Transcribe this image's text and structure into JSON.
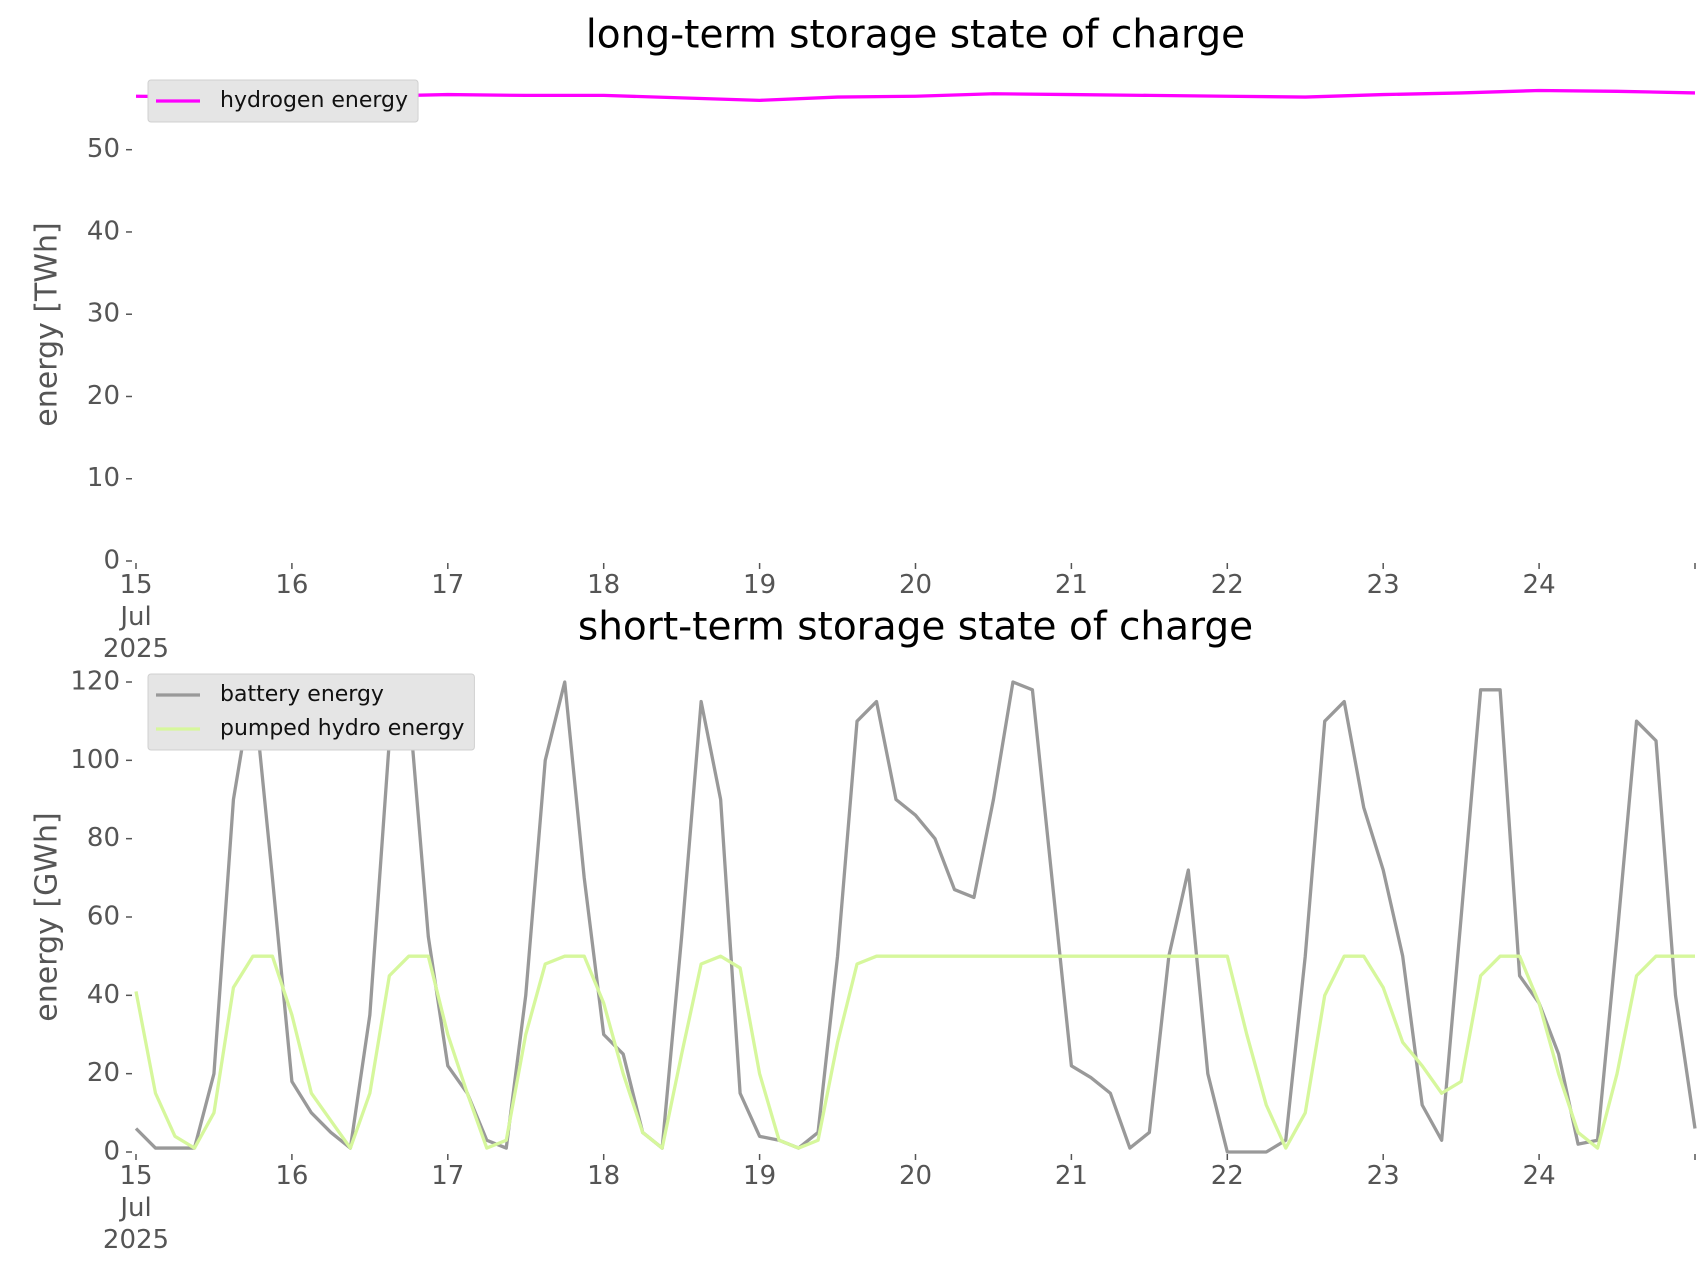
{
  "chart_data": [
    {
      "type": "line",
      "title": "long-term storage state of charge",
      "y_label": "energy [TWh]",
      "x": [
        15,
        15.5,
        16,
        16.5,
        17,
        17.5,
        18,
        18.5,
        19,
        19.5,
        20,
        20.5,
        21,
        21.5,
        22,
        22.5,
        23,
        23.5,
        24,
        24.5,
        25
      ],
      "series": [
        {
          "name": "hydrogen energy",
          "color": "#ff00ff",
          "values": [
            56.5,
            56.4,
            56.4,
            56.5,
            56.7,
            56.6,
            56.6,
            56.3,
            56.0,
            56.4,
            56.5,
            56.8,
            56.7,
            56.6,
            56.5,
            56.4,
            56.7,
            56.9,
            57.2,
            57.1,
            56.9
          ]
        }
      ],
      "xlim": [
        15,
        25
      ],
      "ylim": [
        0,
        57.5
      ],
      "xticks": [
        {
          "value": 15,
          "label": "15\nJul\n2025"
        },
        16,
        17,
        18,
        19,
        20,
        21,
        22,
        23,
        24,
        {
          "value": 25,
          "label": ""
        }
      ],
      "yticks": [
        0,
        10,
        20,
        30,
        40,
        50
      ],
      "legend": "upper left",
      "grid": false
    },
    {
      "type": "line",
      "title": "short-term storage state of charge",
      "y_label": "energy [GWh]",
      "x": [
        15,
        15.125,
        15.25,
        15.375,
        15.5,
        15.625,
        15.75,
        15.875,
        16,
        16.125,
        16.25,
        16.375,
        16.5,
        16.625,
        16.75,
        16.875,
        17,
        17.125,
        17.25,
        17.375,
        17.5,
        17.625,
        17.75,
        17.875,
        18,
        18.125,
        18.25,
        18.375,
        18.5,
        18.625,
        18.75,
        18.875,
        19,
        19.125,
        19.25,
        19.375,
        19.5,
        19.625,
        19.75,
        19.875,
        20,
        20.125,
        20.25,
        20.375,
        20.5,
        20.625,
        20.75,
        20.875,
        21,
        21.125,
        21.25,
        21.375,
        21.5,
        21.625,
        21.75,
        21.875,
        22,
        22.125,
        22.25,
        22.375,
        22.5,
        22.625,
        22.75,
        22.875,
        23,
        23.125,
        23.25,
        23.375,
        23.5,
        23.625,
        23.75,
        23.875,
        24,
        24.125,
        24.25,
        24.375,
        24.5,
        24.625,
        24.75,
        24.875,
        25
      ],
      "series": [
        {
          "name": "battery energy",
          "color": "#999999",
          "values": [
            6,
            1,
            1,
            1,
            20,
            90,
            120,
            70,
            18,
            10,
            5,
            1,
            35,
            105,
            115,
            55,
            22,
            15,
            3,
            1,
            40,
            100,
            120,
            70,
            30,
            25,
            5,
            1,
            55,
            115,
            90,
            15,
            4,
            3,
            1,
            5,
            50,
            110,
            115,
            90,
            86,
            80,
            67,
            65,
            90,
            120,
            118,
            70,
            22,
            19,
            15,
            1,
            5,
            50,
            72,
            20,
            0,
            0,
            0,
            3,
            50,
            110,
            115,
            88,
            72,
            50,
            12,
            3,
            60,
            118,
            118,
            45,
            38,
            25,
            2,
            3,
            55,
            110,
            105,
            40,
            6
          ]
        },
        {
          "name": "pumped hydro energy",
          "color": "#d6f79c",
          "values": [
            41,
            15,
            4,
            1,
            10,
            42,
            50,
            50,
            35,
            15,
            8,
            1,
            15,
            45,
            50,
            50,
            30,
            15,
            1,
            3,
            30,
            48,
            50,
            50,
            38,
            20,
            5,
            1,
            25,
            48,
            50,
            47,
            20,
            3,
            1,
            3,
            28,
            48,
            50,
            50,
            50,
            50,
            50,
            50,
            50,
            50,
            50,
            50,
            50,
            50,
            50,
            50,
            50,
            50,
            50,
            50,
            50,
            30,
            12,
            1,
            10,
            40,
            50,
            50,
            42,
            28,
            22,
            15,
            18,
            45,
            50,
            50,
            38,
            20,
            5,
            1,
            20,
            45,
            50,
            50,
            50
          ]
        }
      ],
      "xlim": [
        15,
        25
      ],
      "ylim": [
        0,
        120
      ],
      "xticks": [
        {
          "value": 15,
          "label": "15\nJul\n2025"
        },
        16,
        17,
        18,
        19,
        20,
        21,
        22,
        23,
        24,
        {
          "value": 25,
          "label": ""
        }
      ],
      "yticks": [
        0,
        20,
        40,
        60,
        80,
        100,
        120
      ],
      "legend": "upper left",
      "grid": false
    }
  ]
}
